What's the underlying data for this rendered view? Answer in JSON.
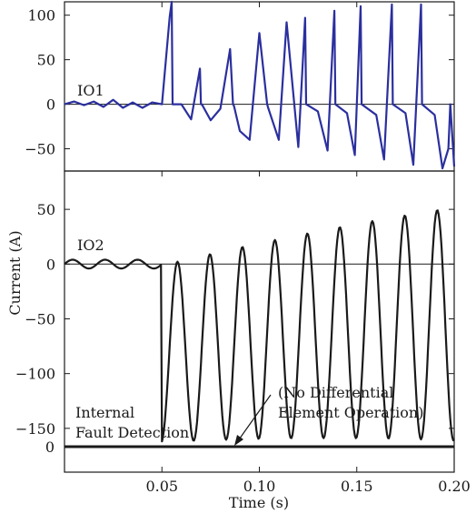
{
  "chart_data": [
    {
      "type": "line",
      "panel": "top",
      "trace_label": "IO1",
      "color": "#2b2f9e",
      "ylim": [
        -75,
        115
      ],
      "yticks": [
        "100",
        "50",
        "0",
        "−50"
      ],
      "ytick_values": [
        100,
        50,
        0,
        -50
      ],
      "x": [
        0.0,
        0.005,
        0.01,
        0.015,
        0.02,
        0.025,
        0.03,
        0.035,
        0.04,
        0.045,
        0.05,
        0.054,
        0.055,
        0.0555,
        0.06,
        0.065,
        0.0695,
        0.07,
        0.0705,
        0.075,
        0.08,
        0.085,
        0.0865,
        0.087,
        0.09,
        0.095,
        0.1,
        0.104,
        0.1045,
        0.11,
        0.114,
        0.12,
        0.1235,
        0.124,
        0.13,
        0.135,
        0.1385,
        0.139,
        0.145,
        0.149,
        0.152,
        0.1525,
        0.16,
        0.164,
        0.168,
        0.1685,
        0.175,
        0.179,
        0.183,
        0.1835,
        0.19,
        0.194,
        0.197,
        0.198,
        0.2
      ],
      "y": [
        0,
        3,
        -1,
        3,
        -3,
        5,
        -4,
        2,
        -4,
        2,
        0,
        98,
        115,
        0,
        0,
        -17,
        40,
        0,
        0,
        -18,
        -5,
        62,
        0,
        -2,
        -30,
        -40,
        80,
        0,
        -4,
        -40,
        92,
        -48,
        97,
        0,
        -8,
        -52,
        105,
        0,
        -10,
        -57,
        110,
        0,
        -12,
        -62,
        112,
        0,
        -10,
        -68,
        112,
        0,
        -12,
        -72,
        -50,
        0,
        -70
      ],
      "annotations": [],
      "background": "#ffffff"
    },
    {
      "type": "line",
      "panel": "bottom",
      "trace_label": "IO2",
      "color": "#1a1a1a",
      "ylim": [
        -190,
        85
      ],
      "yticks": [
        "50",
        "0",
        "−50",
        "−100",
        "−150"
      ],
      "ytick_values": [
        50,
        0,
        -50,
        -100,
        -150
      ],
      "xlabel": "Time (s)",
      "ylabel": "Current (A)",
      "xticks": [
        "0.05",
        "0.10",
        "0.15",
        "0.20"
      ],
      "xtick_values": [
        0.05,
        0.1,
        0.15,
        0.2
      ],
      "xlim": [
        0.0,
        0.2
      ],
      "zero_lines": [
        0
      ],
      "annotations": [
        {
          "text": "Internal",
          "line": 1
        },
        {
          "text": "Fault Detection",
          "line": 2
        },
        {
          "text": "(No Differential",
          "line": 1
        },
        {
          "text": "Element Operation)",
          "line": 2
        }
      ],
      "background": "#ffffff"
    }
  ],
  "labels": {
    "io1": "IO1",
    "io2": "IO2",
    "xlabel": "Time (s)",
    "ylabel": "Current (A)",
    "fault_line1": "Internal",
    "fault_line2": "Fault Detection",
    "note_line1": "(No Differential",
    "note_line2": "Element Operation)",
    "digital_zero": "0"
  }
}
